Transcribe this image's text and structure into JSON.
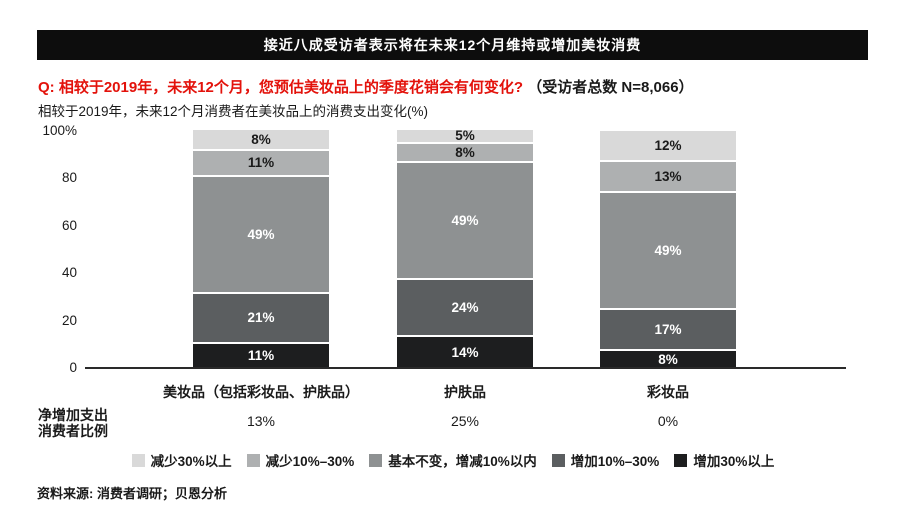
{
  "banner": {
    "title": "接近八成受访者表示将在未来12个月维持或增加美妆消费"
  },
  "question": {
    "red": "Q: 相较于2019年，未来12个月，您预估美妆品上的季度花销会有何变化?",
    "black": "（受访者总数 N=8,066）"
  },
  "subtitle": "相较于2019年，未来12个月消费者在美妆品上的消费支出变化(%)",
  "chart_data": {
    "type": "bar",
    "stacked": true,
    "title": "相较于2019年，未来12个月消费者在美妆品上的消费支出变化(%)",
    "ylim": [
      0,
      100
    ],
    "yticks": [
      "100%",
      "80",
      "60",
      "40",
      "20",
      "0"
    ],
    "grid": false,
    "legend_position": "bottom",
    "value_suffix": "%",
    "categories": [
      "美妆品（包括彩妆品、护肤品）",
      "护肤品",
      "彩妆品"
    ],
    "series": [
      {
        "name": "减少30%以上",
        "color": "#d9d9d9",
        "label_color": "#1a1a1a",
        "values": [
          8,
          5,
          12
        ]
      },
      {
        "name": "减少10%–30%",
        "color": "#aeb0b1",
        "label_color": "#1a1a1a",
        "values": [
          11,
          8,
          13
        ]
      },
      {
        "name": "基本不变，增减10%以内",
        "color": "#8e9192",
        "label_color": "#ffffff",
        "values": [
          49,
          49,
          49
        ]
      },
      {
        "name": "增加10%–30%",
        "color": "#5b5e60",
        "label_color": "#ffffff",
        "values": [
          21,
          24,
          17
        ]
      },
      {
        "name": "增加30%以上",
        "color": "#1d1e1f",
        "label_color": "#ffffff",
        "values": [
          11,
          14,
          8
        ]
      }
    ]
  },
  "net_row": {
    "label_lines": [
      "净增加支出",
      "消费者比例"
    ],
    "values": [
      "13%",
      "25%",
      "0%"
    ]
  },
  "source": "资料来源: 消费者调研；贝恩分析"
}
